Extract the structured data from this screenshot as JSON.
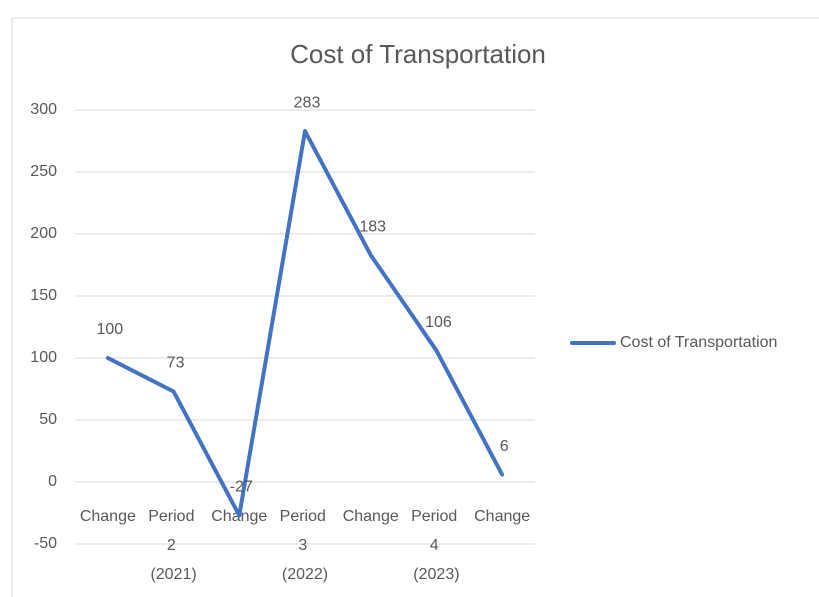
{
  "chart_data": {
    "type": "line",
    "title": "Cost of Transportation",
    "categories": [
      "Change",
      "Period 2 (2021)",
      "Change",
      "Period 3 (2022)",
      "Change",
      "Period 4 (2023)",
      "Change"
    ],
    "series": [
      {
        "name": "Cost of Transportation",
        "color": "#4472c4",
        "values": [
          100,
          73,
          -27,
          283,
          183,
          106,
          6
        ]
      }
    ],
    "ylim": [
      -50,
      300
    ],
    "yticks": [
      -50,
      0,
      50,
      100,
      150,
      200,
      250,
      300
    ],
    "grid": true,
    "legend": "right"
  }
}
